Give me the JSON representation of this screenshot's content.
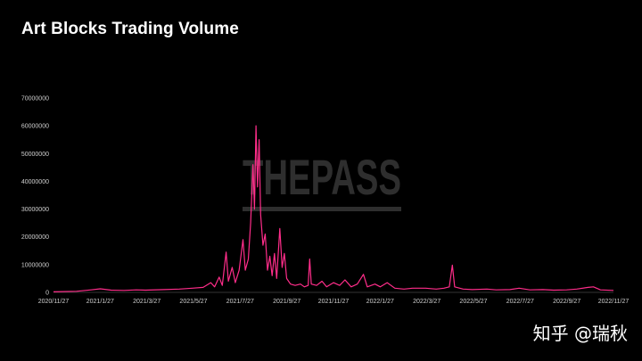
{
  "chart_data": {
    "type": "line",
    "title": "Art Blocks Trading Volume",
    "xlabel": "",
    "ylabel": "",
    "ylim": [
      0,
      70000000
    ],
    "yticks": [
      "0",
      "10000000",
      "20000000",
      "30000000",
      "40000000",
      "50000000",
      "60000000",
      "70000000"
    ],
    "x_tick_labels": [
      "2020/11/27",
      "2021/1/27",
      "2021/3/27",
      "2021/5/27",
      "2021/7/27",
      "2021/9/27",
      "2021/11/27",
      "2022/1/27",
      "2022/3/27",
      "2022/5/27",
      "2022/7/27",
      "2022/9/27",
      "2022/11/27"
    ],
    "x_range": [
      "2020-11-27",
      "2022-11-27"
    ],
    "grid": false,
    "line_color": "#ff2d8a",
    "series": [
      {
        "name": "",
        "points": [
          [
            "2020-11-27",
            200000
          ],
          [
            "2020-12-27",
            400000
          ],
          [
            "2021-01-15",
            900000
          ],
          [
            "2021-01-27",
            1300000
          ],
          [
            "2021-02-10",
            800000
          ],
          [
            "2021-02-27",
            700000
          ],
          [
            "2021-03-15",
            900000
          ],
          [
            "2021-03-27",
            800000
          ],
          [
            "2021-04-20",
            1000000
          ],
          [
            "2021-05-10",
            1200000
          ],
          [
            "2021-05-27",
            1500000
          ],
          [
            "2021-06-10",
            1800000
          ],
          [
            "2021-06-20",
            3500000
          ],
          [
            "2021-06-25",
            2000000
          ],
          [
            "2021-07-01",
            5500000
          ],
          [
            "2021-07-05",
            2500000
          ],
          [
            "2021-07-10",
            14500000
          ],
          [
            "2021-07-13",
            4000000
          ],
          [
            "2021-07-18",
            9000000
          ],
          [
            "2021-07-22",
            3500000
          ],
          [
            "2021-07-27",
            8000000
          ],
          [
            "2021-08-01",
            19000000
          ],
          [
            "2021-08-04",
            8000000
          ],
          [
            "2021-08-08",
            12000000
          ],
          [
            "2021-08-11",
            25000000
          ],
          [
            "2021-08-14",
            46000000
          ],
          [
            "2021-08-16",
            30000000
          ],
          [
            "2021-08-18",
            60000000
          ],
          [
            "2021-08-20",
            38000000
          ],
          [
            "2021-08-22",
            55000000
          ],
          [
            "2021-08-24",
            28000000
          ],
          [
            "2021-08-27",
            17000000
          ],
          [
            "2021-08-30",
            21000000
          ],
          [
            "2021-09-02",
            8000000
          ],
          [
            "2021-09-05",
            13000000
          ],
          [
            "2021-09-08",
            6000000
          ],
          [
            "2021-09-11",
            14000000
          ],
          [
            "2021-09-14",
            5000000
          ],
          [
            "2021-09-18",
            23000000
          ],
          [
            "2021-09-21",
            9000000
          ],
          [
            "2021-09-24",
            14000000
          ],
          [
            "2021-09-27",
            5000000
          ],
          [
            "2021-10-02",
            3000000
          ],
          [
            "2021-10-08",
            2500000
          ],
          [
            "2021-10-15",
            3000000
          ],
          [
            "2021-10-20",
            2000000
          ],
          [
            "2021-10-25",
            2500000
          ],
          [
            "2021-10-27",
            12000000
          ],
          [
            "2021-10-29",
            3000000
          ],
          [
            "2021-11-05",
            2500000
          ],
          [
            "2021-11-12",
            4000000
          ],
          [
            "2021-11-18",
            2000000
          ],
          [
            "2021-11-27",
            3500000
          ],
          [
            "2021-12-05",
            2500000
          ],
          [
            "2021-12-12",
            4500000
          ],
          [
            "2021-12-20",
            2000000
          ],
          [
            "2021-12-28",
            3000000
          ],
          [
            "2022-01-05",
            6500000
          ],
          [
            "2022-01-10",
            2000000
          ],
          [
            "2022-01-20",
            3000000
          ],
          [
            "2022-01-27",
            2000000
          ],
          [
            "2022-02-05",
            3500000
          ],
          [
            "2022-02-15",
            1500000
          ],
          [
            "2022-02-27",
            1200000
          ],
          [
            "2022-03-10",
            1500000
          ],
          [
            "2022-03-27",
            1500000
          ],
          [
            "2022-04-10",
            1200000
          ],
          [
            "2022-04-20",
            1500000
          ],
          [
            "2022-04-27",
            2000000
          ],
          [
            "2022-05-01",
            9800000
          ],
          [
            "2022-05-04",
            2000000
          ],
          [
            "2022-05-15",
            1200000
          ],
          [
            "2022-05-27",
            1000000
          ],
          [
            "2022-06-15",
            1200000
          ],
          [
            "2022-06-27",
            900000
          ],
          [
            "2022-07-15",
            1000000
          ],
          [
            "2022-07-27",
            1500000
          ],
          [
            "2022-08-10",
            900000
          ],
          [
            "2022-08-27",
            1000000
          ],
          [
            "2022-09-10",
            800000
          ],
          [
            "2022-09-27",
            900000
          ],
          [
            "2022-10-10",
            1200000
          ],
          [
            "2022-10-25",
            1800000
          ],
          [
            "2022-11-01",
            2000000
          ],
          [
            "2022-11-10",
            900000
          ],
          [
            "2022-11-27",
            700000
          ]
        ]
      }
    ]
  },
  "watermark": "THEPASS",
  "attribution": "知乎 @瑞秋"
}
